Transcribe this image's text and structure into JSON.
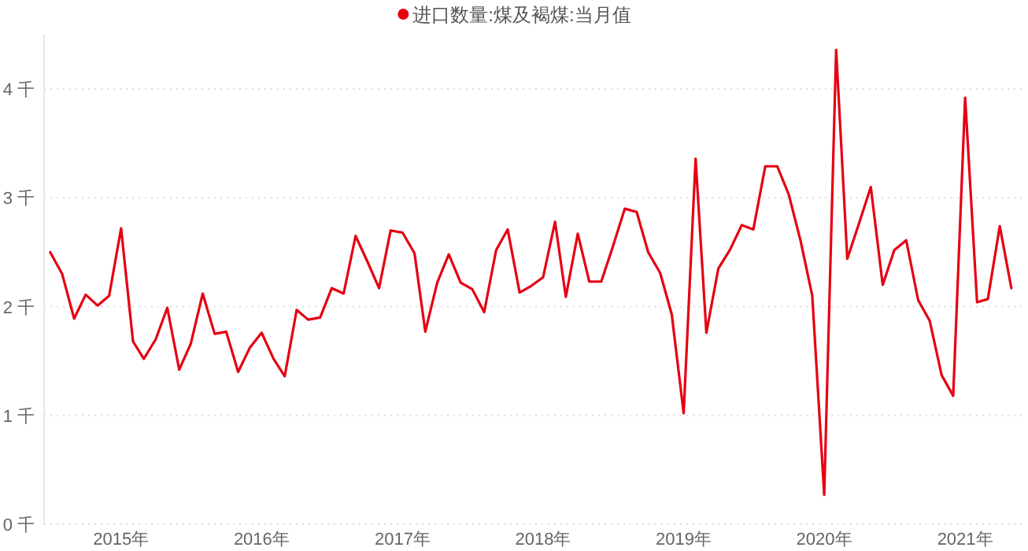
{
  "chart_data": {
    "type": "line",
    "legend": "top",
    "x": [
      "2014-07",
      "2014-08",
      "2014-09",
      "2014-10",
      "2014-11",
      "2014-12",
      "2015-01",
      "2015-02",
      "2015-03",
      "2015-04",
      "2015-05",
      "2015-06",
      "2015-07",
      "2015-08",
      "2015-09",
      "2015-10",
      "2015-11",
      "2015-12",
      "2016-01",
      "2016-02",
      "2016-03",
      "2016-04",
      "2016-05",
      "2016-06",
      "2016-07",
      "2016-08",
      "2016-09",
      "2016-10",
      "2016-11",
      "2016-12",
      "2017-01",
      "2017-02",
      "2017-03",
      "2017-04",
      "2017-05",
      "2017-06",
      "2017-07",
      "2017-08",
      "2017-09",
      "2017-10",
      "2017-11",
      "2017-12",
      "2018-01",
      "2018-02",
      "2018-03",
      "2018-04",
      "2018-05",
      "2018-06",
      "2018-07",
      "2018-08",
      "2018-09",
      "2018-10",
      "2018-11",
      "2018-12",
      "2019-01",
      "2019-02",
      "2019-03",
      "2019-04",
      "2019-05",
      "2019-06",
      "2019-07",
      "2019-08",
      "2019-09",
      "2019-10",
      "2019-11",
      "2019-12",
      "2020-01",
      "2020-02",
      "2020-03",
      "2020-04",
      "2020-05",
      "2020-06",
      "2020-07",
      "2020-08",
      "2020-09",
      "2020-10",
      "2020-11",
      "2020-12",
      "2021-01",
      "2021-02",
      "2021-03",
      "2021-04",
      "2021-05"
    ],
    "series": [
      {
        "name": "进口数量:煤及褐煤:当月值",
        "color": "#e50012",
        "values": [
          2.5,
          2.3,
          1.89,
          2.11,
          2.01,
          2.1,
          2.72,
          1.68,
          1.52,
          1.7,
          1.99,
          1.42,
          1.66,
          2.12,
          1.75,
          1.77,
          1.4,
          1.62,
          1.76,
          1.52,
          1.36,
          1.97,
          1.88,
          1.9,
          2.17,
          2.12,
          2.65,
          2.42,
          2.17,
          2.7,
          2.68,
          2.49,
          1.77,
          2.22,
          2.48,
          2.22,
          2.16,
          1.95,
          2.52,
          2.71,
          2.13,
          2.19,
          2.27,
          2.78,
          2.09,
          2.67,
          2.23,
          2.23,
          2.55,
          2.9,
          2.87,
          2.5,
          2.31,
          1.93,
          1.02,
          3.36,
          1.76,
          2.35,
          2.52,
          2.75,
          2.71,
          3.29,
          3.29,
          3.03,
          2.6,
          2.1,
          0.27,
          4.36,
          2.44,
          2.77,
          3.1,
          2.2,
          2.52,
          2.61,
          2.06,
          1.87,
          1.37,
          1.18,
          3.92,
          2.04,
          2.07,
          2.74,
          2.17
        ]
      }
    ],
    "xlim": [
      "2014-06-15",
      "2021-06-01"
    ],
    "xticks": [
      {
        "value": "2015-01",
        "label": "2015年"
      },
      {
        "value": "2016-01",
        "label": "2016年"
      },
      {
        "value": "2017-01",
        "label": "2017年"
      },
      {
        "value": "2018-01",
        "label": "2018年"
      },
      {
        "value": "2019-01",
        "label": "2019年"
      },
      {
        "value": "2020-01",
        "label": "2020年"
      },
      {
        "value": "2021-01",
        "label": "2021年"
      }
    ],
    "ylim": [
      0,
      4.5
    ],
    "yticks": [
      {
        "value": 0,
        "label": "0 千"
      },
      {
        "value": 1,
        "label": "1 千"
      },
      {
        "value": 2,
        "label": "2 千"
      },
      {
        "value": 3,
        "label": "3 千"
      },
      {
        "value": 4,
        "label": "4 千"
      }
    ],
    "grid": "y",
    "marker": "none",
    "line_style": "solid"
  }
}
